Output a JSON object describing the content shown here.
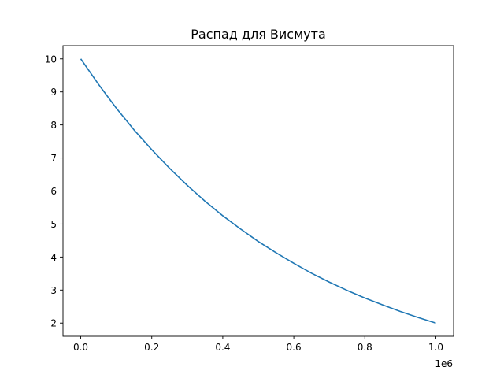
{
  "chart_data": {
    "type": "line",
    "title": "Распад для Висмута",
    "xlabel": "",
    "ylabel": "",
    "xlim": [
      -0.05,
      1.05
    ],
    "ylim": [
      1.6,
      10.4
    ],
    "x_ticks": [
      0.0,
      0.2,
      0.4,
      0.6,
      0.8,
      1.0
    ],
    "x_tick_labels": [
      "0.0",
      "0.2",
      "0.4",
      "0.6",
      "0.8",
      "1.0"
    ],
    "x_offset_label": "1e6",
    "y_ticks": [
      2,
      3,
      4,
      5,
      6,
      7,
      8,
      9,
      10
    ],
    "y_tick_labels": [
      "2",
      "3",
      "4",
      "5",
      "6",
      "7",
      "8",
      "9",
      "10"
    ],
    "grid": false,
    "series": [
      {
        "color": "#1f77b4",
        "x": [
          0.0,
          0.05,
          0.1,
          0.15,
          0.2,
          0.25,
          0.3,
          0.35,
          0.4,
          0.45,
          0.5,
          0.55,
          0.6,
          0.65,
          0.7,
          0.75,
          0.8,
          0.85,
          0.9,
          0.95,
          1.0
        ],
        "y": [
          10.0,
          9.23,
          8.51,
          7.85,
          7.25,
          6.69,
          6.17,
          5.69,
          5.25,
          4.85,
          4.47,
          4.13,
          3.81,
          3.51,
          3.24,
          2.99,
          2.76,
          2.55,
          2.35,
          2.17,
          2.0
        ]
      }
    ]
  }
}
